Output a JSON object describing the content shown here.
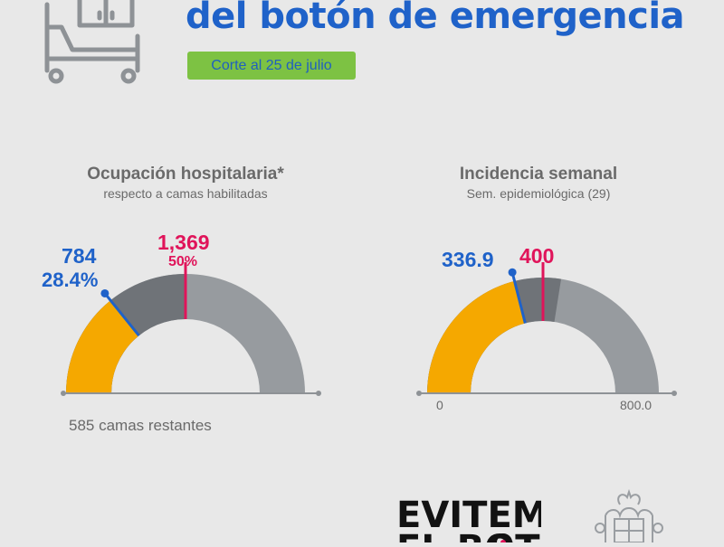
{
  "header": {
    "title": "del botón de emergencia",
    "cutoff_badge": "Corte al 25 de julio"
  },
  "occupancy": {
    "title": "Ocupación hospitalaria*",
    "subtitle": "respecto a camas habilitadas",
    "value": "784",
    "percent": "28.4%",
    "threshold_value": "1,369",
    "threshold_percent": "50%",
    "remaining": "585 camas restantes",
    "fill_fraction": 0.284,
    "threshold_fraction": 0.5
  },
  "incidence": {
    "title": "Incidencia semanal",
    "subtitle": "Sem. epidemiológica (29)",
    "value": "336.9",
    "threshold_value": "400",
    "min_label": "0",
    "max_label": "800.0",
    "fill_fraction": 0.421,
    "threshold_fraction": 0.5
  },
  "footer": {
    "campaign_logo_line1": "EVITEMOS",
    "campaign_logo_line2": "EL BOTÓN"
  },
  "colors": {
    "blue": "#1f62c9",
    "red": "#e0145a",
    "orange": "#f5a800",
    "dark_gray": "#6f7378",
    "light_gray": "#979b9f",
    "green": "#7dc243"
  },
  "icons": [
    "hospital-bed-icon",
    "coat-of-arms-icon"
  ]
}
